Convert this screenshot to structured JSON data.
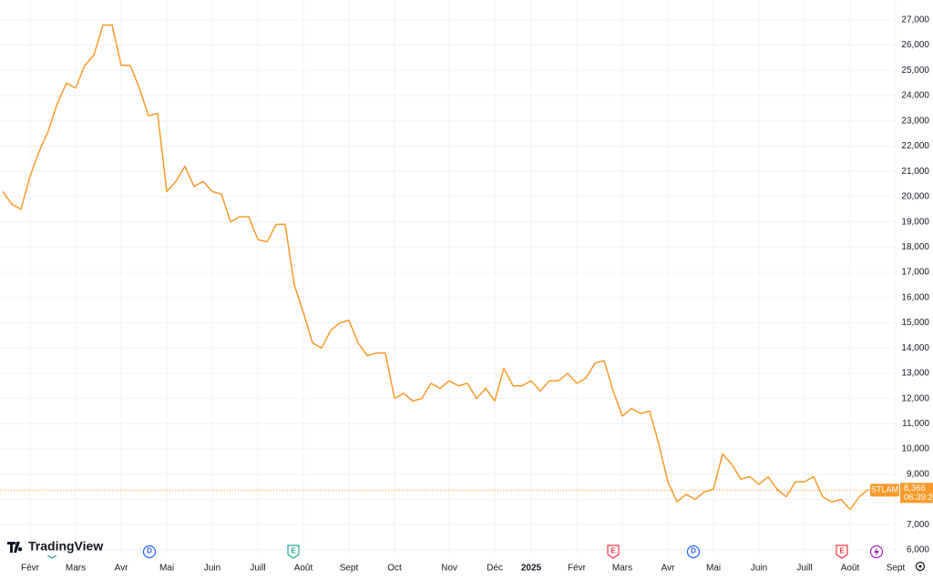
{
  "chart_data": {
    "type": "line",
    "watermark": "TradingView",
    "categories": [
      null,
      null,
      null,
      "Févr",
      null,
      null,
      null,
      null,
      "Mars",
      null,
      null,
      null,
      null,
      "Avr",
      null,
      null,
      null,
      null,
      "Mai",
      null,
      null,
      null,
      null,
      "Juin",
      null,
      null,
      null,
      null,
      "Juill",
      null,
      null,
      null,
      null,
      "Août",
      null,
      null,
      null,
      null,
      "Sept",
      null,
      null,
      null,
      null,
      "Oct",
      null,
      null,
      null,
      null,
      null,
      "Nov",
      null,
      null,
      null,
      null,
      "Déc",
      null,
      null,
      null,
      "2025",
      null,
      null,
      null,
      null,
      "Févr",
      null,
      null,
      null,
      null,
      "Mars",
      null,
      null,
      null,
      null,
      "Avr",
      null,
      null,
      null,
      null,
      "Mai",
      null,
      null,
      null,
      null,
      "Juin",
      null,
      null,
      null,
      null,
      "Juill",
      null,
      null,
      null,
      null,
      "Août",
      null,
      null,
      null,
      null,
      "Sept"
    ],
    "series": [
      {
        "name": "STLAM",
        "color": "#f89a2a",
        "values": [
          20200,
          19700,
          19500,
          20800,
          21800,
          22600,
          23700,
          24500,
          24300,
          25200,
          25600,
          26800,
          26800,
          25200,
          25200,
          24300,
          23200,
          23300,
          20200,
          20600,
          21200,
          20400,
          20600,
          20200,
          20100,
          19000,
          19200,
          19200,
          18300,
          18200,
          18900,
          18900,
          16500,
          15400,
          14200,
          14000,
          14700,
          15000,
          15100,
          14200,
          13700,
          13800,
          13800,
          12000,
          12200,
          11900,
          12000,
          12600,
          12400,
          12700,
          12500,
          12600,
          12000,
          12400,
          11900,
          13200,
          12500,
          12500,
          12700,
          12300,
          12700,
          12700,
          13000,
          12600,
          12800,
          13400,
          13500,
          12300,
          11300,
          11600,
          11400,
          11500,
          10200,
          8700,
          7900,
          8200,
          8000,
          8300,
          8400,
          9800,
          9400,
          8800,
          8900,
          8600,
          8900,
          8400,
          8100,
          8700,
          8700,
          8900,
          8100,
          7900,
          8000,
          7600,
          8100,
          8400,
          null,
          null,
          null
        ]
      }
    ],
    "last_price": {
      "value": 8366,
      "label": "8,366"
    },
    "countdown": "06:39:2",
    "ylim": [
      5780,
      27790
    ],
    "yticks": [
      {
        "value": 6000,
        "label": "6,000"
      },
      {
        "value": 7000,
        "label": "7,000"
      },
      {
        "value": 8000,
        "label": "8,000"
      },
      {
        "value": 9000,
        "label": "9,000"
      },
      {
        "value": 10000,
        "label": "10,000"
      },
      {
        "value": 11000,
        "label": "11,000"
      },
      {
        "value": 12000,
        "label": "12,000"
      },
      {
        "value": 13000,
        "label": "13,000"
      },
      {
        "value": 14000,
        "label": "14,000"
      },
      {
        "value": 15000,
        "label": "15,000"
      },
      {
        "value": 16000,
        "label": "16,000"
      },
      {
        "value": 17000,
        "label": "17,000"
      },
      {
        "value": 18000,
        "label": "18,000"
      },
      {
        "value": 19000,
        "label": "19,000"
      },
      {
        "value": 20000,
        "label": "20,000"
      },
      {
        "value": 21000,
        "label": "21,000"
      },
      {
        "value": 22000,
        "label": "22,000"
      },
      {
        "value": 23000,
        "label": "23,000"
      },
      {
        "value": 24000,
        "label": "24,000"
      },
      {
        "value": 25000,
        "label": "25,000"
      },
      {
        "value": 26000,
        "label": "26,000"
      },
      {
        "value": 27000,
        "label": "27,000"
      }
    ],
    "grid": true,
    "events": [
      {
        "label": "E",
        "color": "#26a69a"
      },
      {
        "label": "D",
        "color": "#2962ff"
      },
      {
        "label": "E",
        "color": "#26a69a"
      },
      {
        "label": "E",
        "color": "#f23645"
      },
      {
        "label": "D",
        "color": "#2962ff"
      },
      {
        "label": "E",
        "color": "#f23645"
      }
    ]
  }
}
